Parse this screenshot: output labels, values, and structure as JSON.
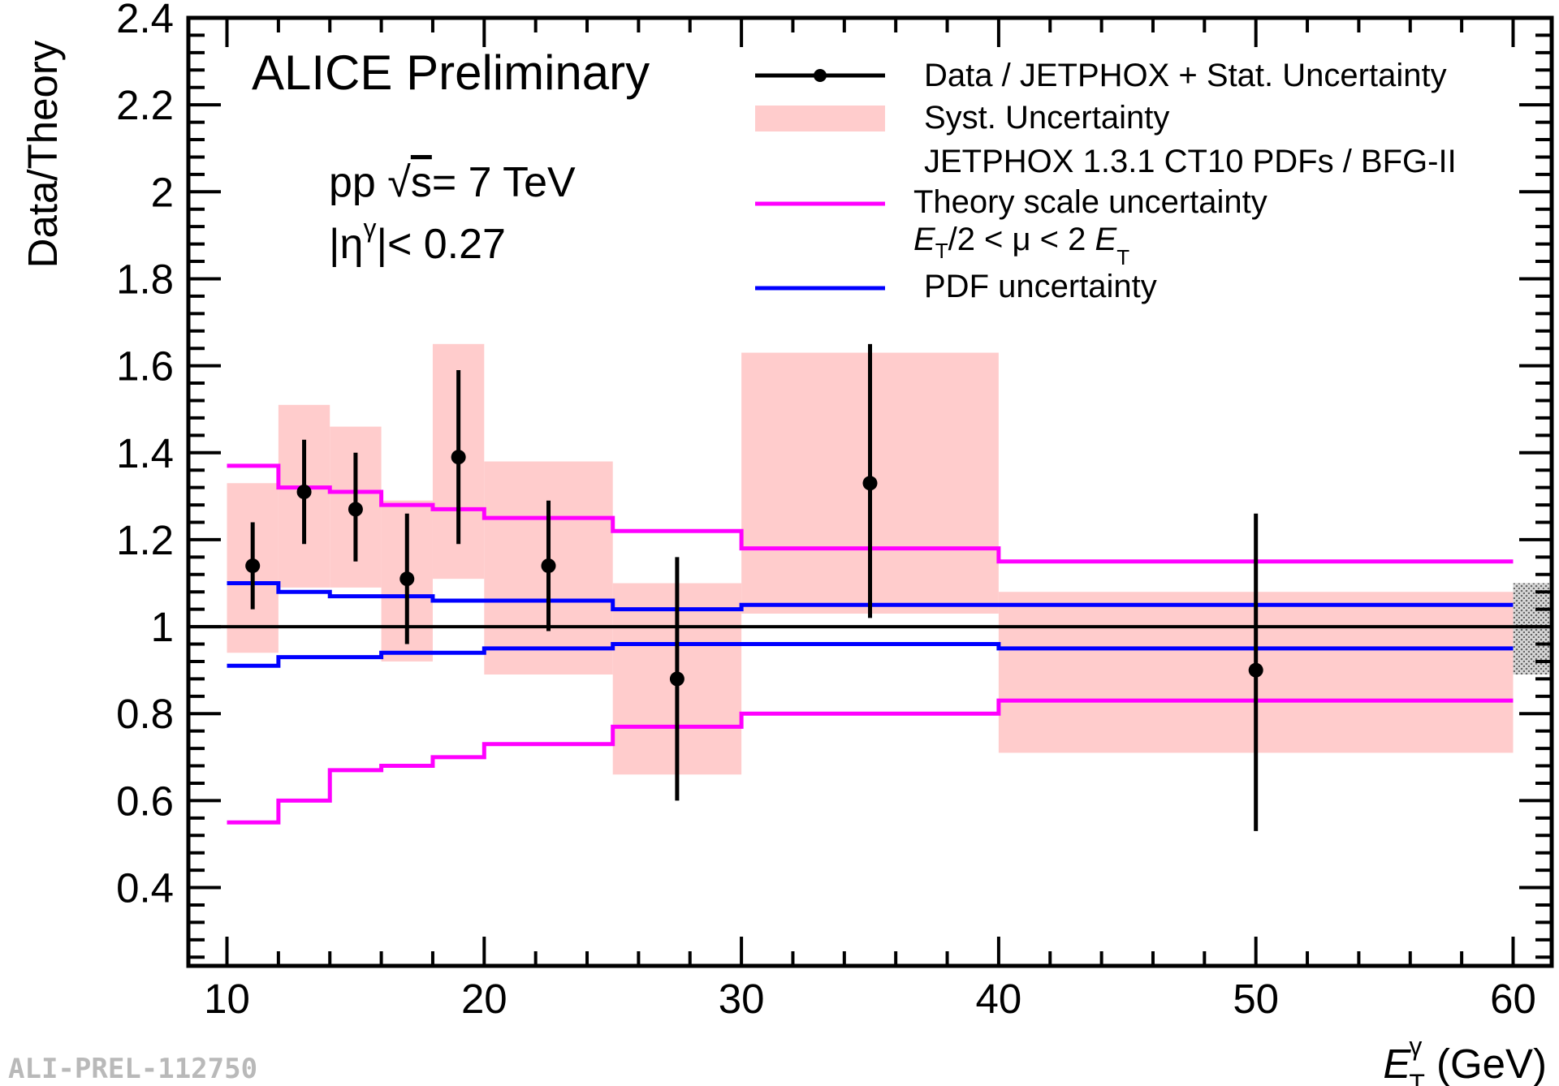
{
  "chart_data": {
    "type": "scatter",
    "title": "ALICE Preliminary",
    "xlabel": "(GeV)",
    "xlabel_symbol": "E",
    "xlabel_sub": "T",
    "xlabel_sup": "γ",
    "ylabel": "Data/Theory",
    "xlim": [
      8.5,
      61.5
    ],
    "ylim": [
      0.22,
      2.4
    ],
    "x_ticks": [
      10,
      20,
      30,
      40,
      50,
      60
    ],
    "x_tick_labels": [
      "10",
      "20",
      "30",
      "40",
      "50",
      "60"
    ],
    "y_ticks": [
      0.4,
      0.6,
      0.8,
      1.0,
      1.2,
      1.4,
      1.6,
      1.8,
      2.0,
      2.2,
      2.4
    ],
    "y_tick_labels": [
      "0.4",
      "0.6",
      "0.8",
      "1",
      "1.2",
      "1.4",
      "1.6",
      "1.8",
      "2",
      "2.2",
      "2.4"
    ],
    "reference_line": 1.0,
    "bin_edges": [
      10,
      12,
      14,
      16,
      18,
      20,
      25,
      30,
      40,
      60
    ],
    "series": [
      {
        "name": "Data / JETPHOX + Stat. Uncertainty",
        "x": [
          11,
          13,
          15,
          17,
          19,
          22.5,
          27.5,
          35,
          50
        ],
        "y": [
          1.14,
          1.31,
          1.27,
          1.11,
          1.39,
          1.14,
          0.88,
          1.33,
          0.9
        ],
        "stat_lo": [
          1.04,
          1.19,
          1.15,
          0.96,
          1.19,
          0.99,
          0.6,
          1.02,
          0.53
        ],
        "stat_hi": [
          1.24,
          1.43,
          1.4,
          1.26,
          1.59,
          1.29,
          1.16,
          1.65,
          1.26
        ]
      },
      {
        "name": "Syst. Uncertainty",
        "syst_lo": [
          0.94,
          1.09,
          1.09,
          0.92,
          1.11,
          0.89,
          0.66,
          1.03,
          0.71
        ],
        "syst_hi": [
          1.33,
          1.51,
          1.46,
          1.29,
          1.65,
          1.38,
          1.1,
          1.63,
          1.08
        ]
      },
      {
        "name": "Theory scale uncertainty",
        "upper": [
          1.37,
          1.32,
          1.31,
          1.28,
          1.27,
          1.25,
          1.22,
          1.18,
          1.15
        ],
        "lower": [
          0.55,
          0.6,
          0.67,
          0.68,
          0.7,
          0.73,
          0.77,
          0.8,
          0.83
        ]
      },
      {
        "name": "PDF uncertainty",
        "upper": [
          1.1,
          1.08,
          1.07,
          1.07,
          1.06,
          1.06,
          1.04,
          1.05,
          1.05
        ],
        "lower": [
          0.91,
          0.93,
          0.93,
          0.94,
          0.94,
          0.95,
          0.96,
          0.96,
          0.95
        ]
      }
    ],
    "normalization_band": [
      0.89,
      1.1
    ],
    "legend": {
      "placement": "top-right",
      "entries": [
        "Data / JETPHOX + Stat. Uncertainty",
        "Syst. Uncertainty",
        "JETPHOX 1.3.1 CT10 PDFs / BFG-II",
        "Theory scale uncertainty",
        "PDF uncertainty"
      ],
      "scale_range_parts": [
        "E",
        "T",
        "/2 < μ < 2 ",
        "E",
        "T"
      ]
    },
    "annotations": {
      "energy_pre": "pp √",
      "energy_s": "s",
      "energy_post": "= 7 TeV",
      "eta_a": "|η",
      "eta_sup": "γ",
      "eta_b": "|< 0.27",
      "preliminary_id": "ALI-PREL-112750"
    }
  },
  "colors": {
    "data": "#000000",
    "syst": "#ffcccc",
    "scale": "#ff00ff",
    "pdf": "#0000ff",
    "band": "#aaaaaa"
  }
}
